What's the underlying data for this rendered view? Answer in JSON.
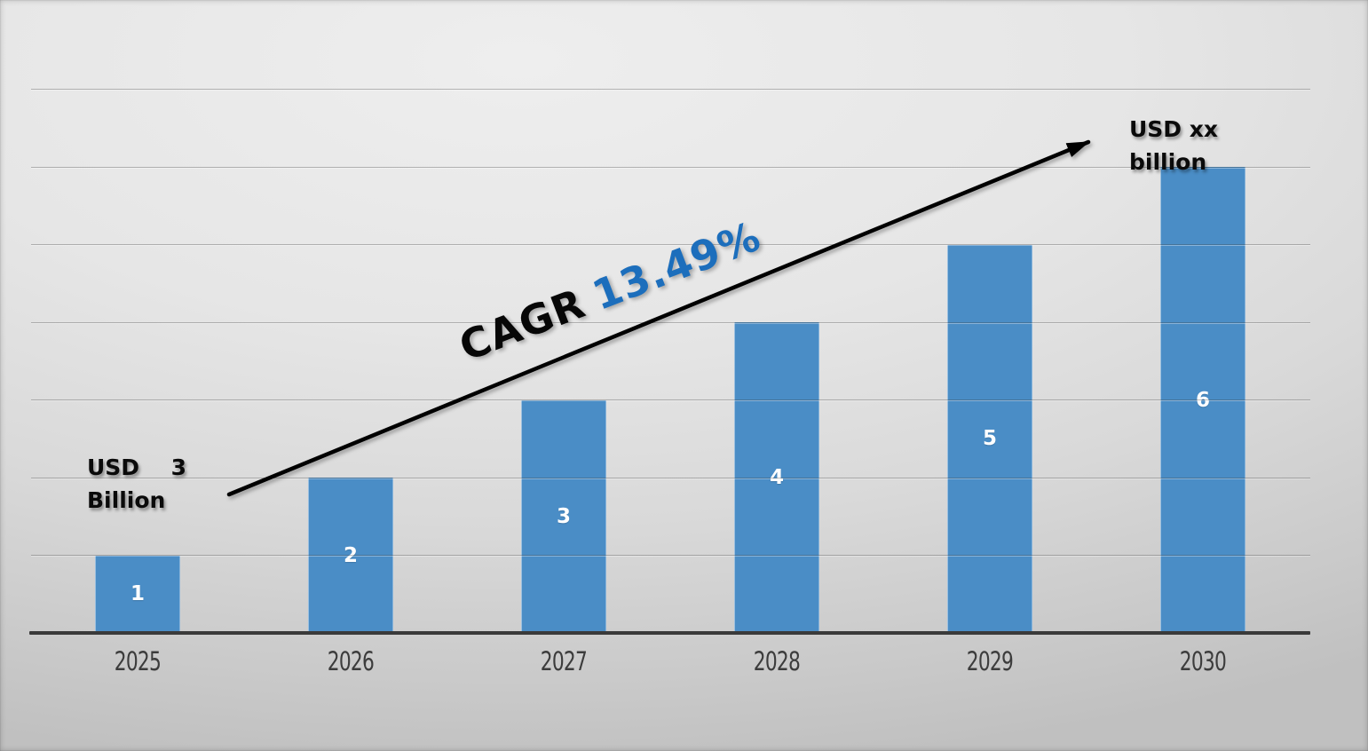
{
  "chart_data": {
    "type": "bar",
    "title": "",
    "xlabel": "",
    "ylabel": "",
    "categories": [
      "2025",
      "2026",
      "2027",
      "2028",
      "2029",
      "2030"
    ],
    "values": [
      1,
      2,
      3,
      4,
      5,
      6
    ],
    "bar_labels": [
      "1",
      "2",
      "3",
      "4",
      "5",
      "6"
    ],
    "ylim": [
      0,
      7
    ],
    "grid": "horizontal",
    "legend": "none",
    "bar_color": "#4a8dc6",
    "axis_color": "#3a3a3a",
    "annotations": {
      "start_value": {
        "line1_words": [
          "USD",
          "3"
        ],
        "line2": "Billion"
      },
      "end_value": {
        "line1": "USD xx",
        "line2": "billion"
      },
      "cagr": {
        "prefix": "CAGR",
        "value": "13.49%",
        "value_color": "#1c6ebc"
      },
      "trend_arrow": "up-right"
    }
  }
}
